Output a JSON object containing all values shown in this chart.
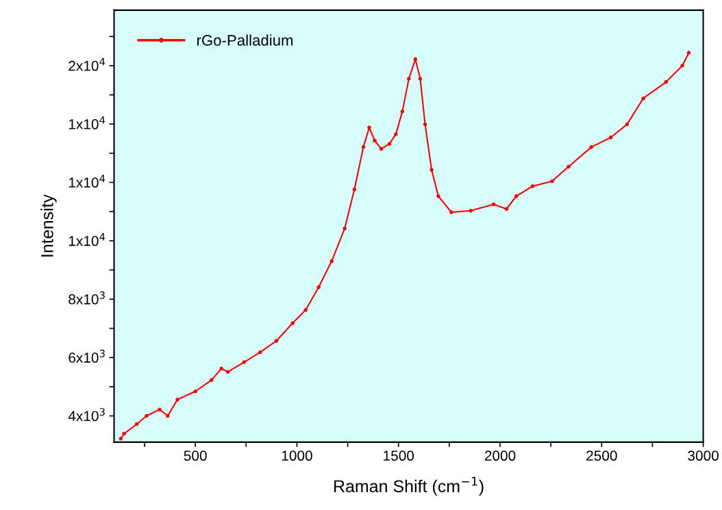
{
  "chart_data": {
    "type": "line",
    "xlabel": "Raman Shift (cm$^{−1}$)",
    "ylabel": "Intensity",
    "xlim": [
      100,
      3000
    ],
    "xticks": [
      {
        "value": 250,
        "label": null
      },
      500,
      {
        "value": 750,
        "label": null
      },
      1000,
      {
        "value": 1250,
        "label": null
      },
      1500,
      {
        "value": 1750,
        "label": null
      },
      2000,
      {
        "value": 2250,
        "label": null
      },
      2500,
      {
        "value": 2750,
        "label": null
      },
      3000
    ],
    "ylim": [
      3100,
      17900
    ],
    "yticks": [
      {
        "value": 4000,
        "label": "4x10$^{3}$"
      },
      {
        "value": 5000,
        "label": null
      },
      {
        "value": 6000,
        "label": "6x10$^{3}$"
      },
      {
        "value": 7000,
        "label": null
      },
      {
        "value": 8000,
        "label": "8x10$^{3}$"
      },
      {
        "value": 9000,
        "label": null
      },
      {
        "value": 10000,
        "label": "1x10$^{4}$"
      },
      {
        "value": 11000,
        "label": null
      },
      {
        "value": 12000,
        "label": "1x10$^{4}$"
      },
      {
        "value": 13000,
        "label": null
      },
      {
        "value": 14000,
        "label": "1x10$^{4}$"
      },
      {
        "value": 15000,
        "label": null
      },
      {
        "value": 16000,
        "label": "2x10$^{4}$"
      },
      {
        "value": 17000,
        "label": null
      }
    ],
    "legend": "top left",
    "marker": "circle",
    "line_style": "solid",
    "grid": false,
    "series": [
      {
        "name": "rGo-Palladium",
        "color": "#ff0000",
        "x": [
          133,
          149,
          212,
          260,
          324,
          364,
          412,
          500,
          580,
          628,
          660,
          740,
          819,
          899,
          979,
          1043,
          1107,
          1171,
          1235,
          1283,
          1327,
          1356,
          1383,
          1415,
          1455,
          1487,
          1519,
          1551,
          1583,
          1607,
          1631,
          1663,
          1696,
          1760,
          1856,
          1968,
          2032,
          2080,
          2160,
          2256,
          2337,
          2449,
          2545,
          2625,
          2705,
          2817,
          2897,
          2929
        ],
        "values": [
          3220,
          3390,
          3720,
          4000,
          4220,
          4000,
          4560,
          4840,
          5230,
          5620,
          5510,
          5840,
          6180,
          6570,
          7180,
          7630,
          8410,
          9300,
          10420,
          11760,
          13210,
          13880,
          13430,
          13150,
          13320,
          13650,
          14430,
          15550,
          16220,
          15550,
          13990,
          12430,
          11530,
          10980,
          11030,
          11250,
          11090,
          11530,
          11870,
          12040,
          12540,
          13210,
          13540,
          13990,
          14880,
          15440,
          16000,
          16440
        ]
      }
    ]
  }
}
